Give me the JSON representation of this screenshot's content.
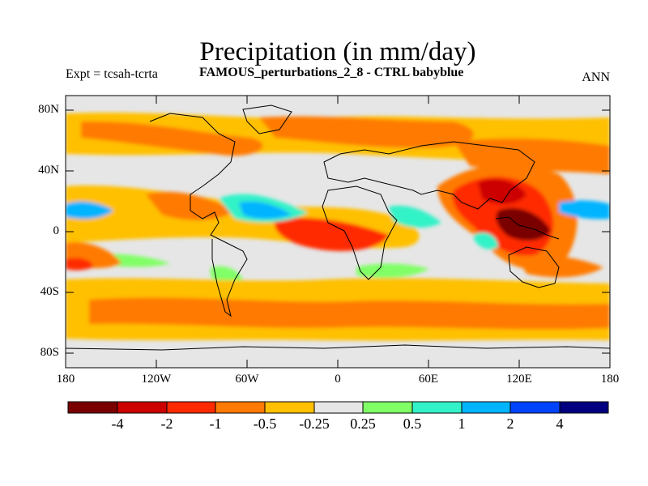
{
  "title": "Precipitation (in mm/day)",
  "left_label": "Expt = tcsah-tcrta",
  "center_label": "FAMOUS_perturbations_2_8 - CTRL babyblue",
  "right_label": "ANN",
  "lat_labels": [
    "80N",
    "40N",
    "0",
    "40S",
    "80S"
  ],
  "lon_labels": [
    "180",
    "120W",
    "60W",
    "0",
    "60E",
    "120E",
    "180"
  ],
  "colorbar": {
    "colors": [
      "#7a0000",
      "#cc0000",
      "#ff2a00",
      "#ff7a00",
      "#ffc000",
      "#e6e6e6",
      "#80ff66",
      "#33f2c8",
      "#00b4ff",
      "#0044ff",
      "#000080"
    ],
    "labels": [
      "-4",
      "-2",
      "-1",
      "-0.5",
      "-0.25",
      "0.25",
      "0.5",
      "1",
      "2",
      "4"
    ]
  }
}
